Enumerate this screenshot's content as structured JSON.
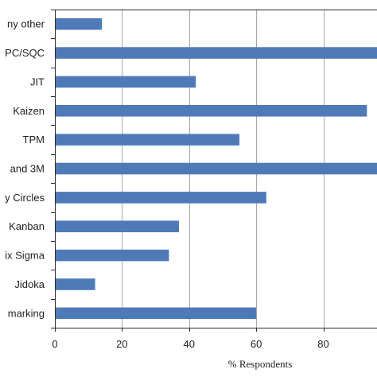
{
  "chart_data": {
    "type": "bar",
    "orientation": "horizontal",
    "categories": [
      "ny other",
      "PC/SQC",
      "JIT",
      "Kaizen",
      "TPM",
      "and 3M",
      "y Circles",
      "Kanban",
      "ix Sigma",
      "Jidoka",
      "marking"
    ],
    "values": [
      14,
      96,
      42,
      93,
      55,
      96,
      63,
      37,
      34,
      12,
      60
    ],
    "xlabel": "% Respondents",
    "ylabel": "",
    "xlim": [
      0,
      96
    ],
    "xticks": [
      "0",
      "20",
      "40",
      "60",
      "80"
    ],
    "grid": true,
    "legend": "none",
    "bar_color": "#4f7ab8",
    "grid_color": "#a6a6a6",
    "frame_color": "#2b2b2b"
  }
}
